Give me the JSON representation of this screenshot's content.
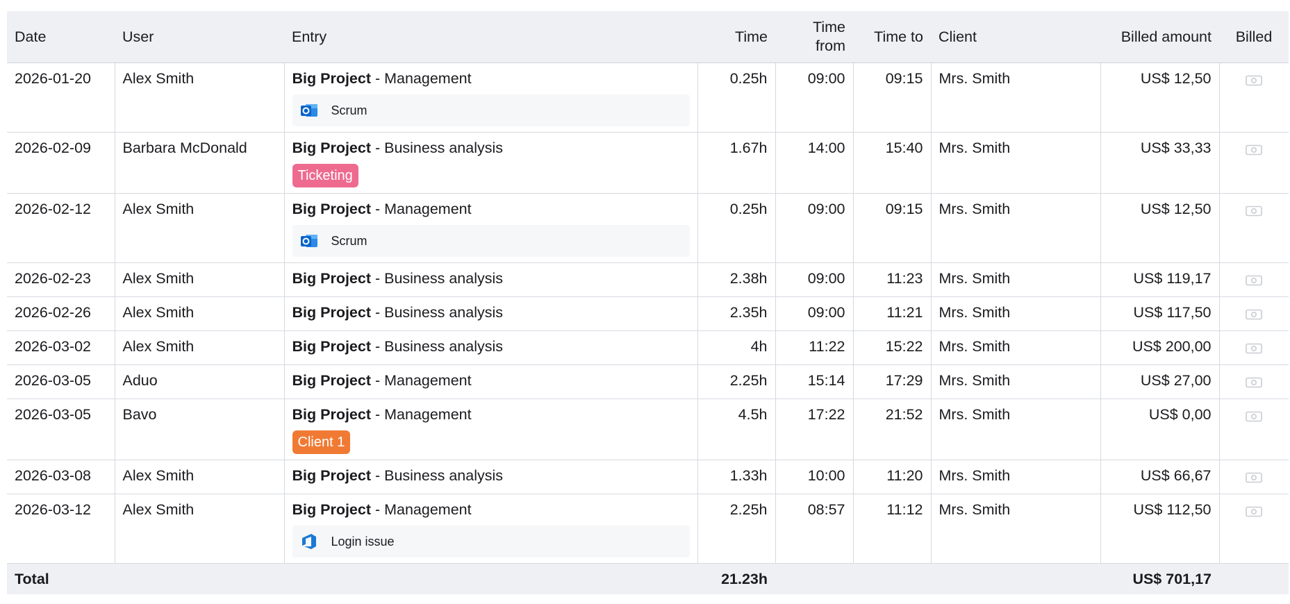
{
  "columns": {
    "date": "Date",
    "user": "User",
    "entry": "Entry",
    "time": "Time",
    "time_from_1": "Time",
    "time_from_2": "from",
    "time_to": "Time to",
    "client": "Client",
    "billed_amount": "Billed amount",
    "billed": "Billed"
  },
  "rows": [
    {
      "date": "2026-01-20",
      "user": "Alex Smith",
      "project": "Big Project",
      "task": " - Management",
      "time": "0.25h",
      "from": "09:00",
      "to": "09:15",
      "client": "Mrs. Smith",
      "amount": "US$ 12,50",
      "sub": {
        "kind": "item",
        "icon": "outlook-icon",
        "label": "Scrum"
      }
    },
    {
      "date": "2026-02-09",
      "user": "Barbara McDonald",
      "project": "Big Project",
      "task": " - Business analysis",
      "time": "1.67h",
      "from": "14:00",
      "to": "15:40",
      "client": "Mrs. Smith",
      "amount": "US$ 33,33",
      "sub": {
        "kind": "tag",
        "label": "Ticketing",
        "color": "#ee6a8f"
      }
    },
    {
      "date": "2026-02-12",
      "user": "Alex Smith",
      "project": "Big Project",
      "task": " - Management",
      "time": "0.25h",
      "from": "09:00",
      "to": "09:15",
      "client": "Mrs. Smith",
      "amount": "US$ 12,50",
      "sub": {
        "kind": "item",
        "icon": "outlook-icon",
        "label": "Scrum"
      }
    },
    {
      "date": "2026-02-23",
      "user": "Alex Smith",
      "project": "Big Project",
      "task": " - Business analysis",
      "time": "2.38h",
      "from": "09:00",
      "to": "11:23",
      "client": "Mrs. Smith",
      "amount": "US$ 119,17"
    },
    {
      "date": "2026-02-26",
      "user": "Alex Smith",
      "project": "Big Project",
      "task": " - Business analysis",
      "time": "2.35h",
      "from": "09:00",
      "to": "11:21",
      "client": "Mrs. Smith",
      "amount": "US$ 117,50"
    },
    {
      "date": "2026-03-02",
      "user": "Alex Smith",
      "project": "Big Project",
      "task": " - Business analysis",
      "time": "4h",
      "from": "11:22",
      "to": "15:22",
      "client": "Mrs. Smith",
      "amount": "US$ 200,00"
    },
    {
      "date": "2026-03-05",
      "user": "Aduo",
      "project": "Big Project",
      "task": " - Management",
      "time": "2.25h",
      "from": "15:14",
      "to": "17:29",
      "client": "Mrs. Smith",
      "amount": "US$ 27,00"
    },
    {
      "date": "2026-03-05",
      "user": "Bavo",
      "project": "Big Project",
      "task": " - Management",
      "time": "4.5h",
      "from": "17:22",
      "to": "21:52",
      "client": "Mrs. Smith",
      "amount": "US$ 0,00",
      "sub": {
        "kind": "tag",
        "label": "Client 1",
        "color": "#f07a34"
      }
    },
    {
      "date": "2026-03-08",
      "user": "Alex Smith",
      "project": "Big Project",
      "task": " - Business analysis",
      "time": "1.33h",
      "from": "10:00",
      "to": "11:20",
      "client": "Mrs. Smith",
      "amount": "US$ 66,67"
    },
    {
      "date": "2026-03-12",
      "user": "Alex Smith",
      "project": "Big Project",
      "task": " - Management",
      "time": "2.25h",
      "from": "08:57",
      "to": "11:12",
      "client": "Mrs. Smith",
      "amount": "US$ 112,50",
      "sub": {
        "kind": "item",
        "icon": "azure-devops-icon",
        "label": "Login issue"
      }
    }
  ],
  "billed_icon": "money-bill-icon",
  "footer": {
    "label": "Total",
    "time_total": "21.23h",
    "amount_total": "US$ 701,17"
  },
  "colors": {
    "header_bg": "#eef0f4",
    "ticketing_tag": "#ee6a8f",
    "client_tag": "#f07a34",
    "outlook_blue": "#0a64c8"
  }
}
